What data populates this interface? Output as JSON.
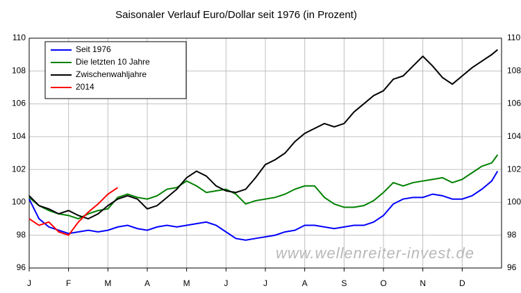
{
  "chart_data": {
    "type": "line",
    "title": "Saisonaler Verlauf Euro/Dollar seit 1976 (in Prozent)",
    "annotation": "www.wellenreiter-invest.de",
    "x": [
      0,
      0.25,
      0.5,
      0.75,
      1,
      1.25,
      1.5,
      1.75,
      2,
      2.25,
      2.5,
      2.75,
      3,
      3.25,
      3.5,
      3.75,
      4,
      4.25,
      4.5,
      4.75,
      5,
      5.25,
      5.5,
      5.75,
      6,
      6.25,
      6.5,
      6.75,
      7,
      7.25,
      7.5,
      7.75,
      8,
      8.25,
      8.5,
      8.75,
      9,
      9.25,
      9.5,
      9.75,
      10,
      10.25,
      10.5,
      10.75,
      11,
      11.25,
      11.5,
      11.75,
      11.9
    ],
    "xlim": [
      0,
      12
    ],
    "xticks": [
      {
        "value": 0,
        "label": "J"
      },
      {
        "value": 1,
        "label": "F"
      },
      {
        "value": 2,
        "label": "M"
      },
      {
        "value": 3,
        "label": "A"
      },
      {
        "value": 4,
        "label": "M"
      },
      {
        "value": 5,
        "label": "J"
      },
      {
        "value": 6,
        "label": "J"
      },
      {
        "value": 7,
        "label": "A"
      },
      {
        "value": 8,
        "label": "S"
      },
      {
        "value": 9,
        "label": "O"
      },
      {
        "value": 10,
        "label": "N"
      },
      {
        "value": 11,
        "label": "D"
      }
    ],
    "ylim": [
      96,
      110
    ],
    "yticks": [
      96,
      98,
      100,
      102,
      104,
      106,
      108,
      110
    ],
    "grid": true,
    "legend": "upper left",
    "series": [
      {
        "name": "Seit 1976",
        "color": "#0000ff",
        "values": [
          100.2,
          99.0,
          98.5,
          98.3,
          98.1,
          98.2,
          98.3,
          98.2,
          98.3,
          98.5,
          98.6,
          98.4,
          98.3,
          98.5,
          98.6,
          98.5,
          98.6,
          98.7,
          98.8,
          98.6,
          98.2,
          97.8,
          97.7,
          97.8,
          97.9,
          98.0,
          98.2,
          98.3,
          98.6,
          98.6,
          98.5,
          98.4,
          98.5,
          98.6,
          98.6,
          98.8,
          99.2,
          99.9,
          100.2,
          100.3,
          100.3,
          100.5,
          100.4,
          100.2,
          100.2,
          100.4,
          100.8,
          101.3,
          101.9
        ]
      },
      {
        "name": "Die letzten 10 Jahre",
        "color": "#008000",
        "values": [
          100.3,
          99.8,
          99.5,
          99.3,
          99.2,
          99.0,
          99.3,
          99.5,
          99.6,
          100.3,
          100.5,
          100.3,
          100.2,
          100.4,
          100.8,
          100.9,
          101.3,
          101.0,
          100.6,
          100.7,
          100.8,
          100.5,
          99.9,
          100.1,
          100.2,
          100.3,
          100.5,
          100.8,
          101.0,
          101.0,
          100.3,
          99.9,
          99.7,
          99.7,
          99.8,
          100.1,
          100.6,
          101.2,
          101.0,
          101.2,
          101.3,
          101.4,
          101.5,
          101.2,
          101.4,
          101.8,
          102.2,
          102.4,
          102.9
        ]
      },
      {
        "name": "Zwischenwahljahre",
        "color": "#000000",
        "values": [
          100.4,
          99.8,
          99.6,
          99.3,
          99.5,
          99.2,
          99.0,
          99.3,
          99.8,
          100.2,
          100.4,
          100.2,
          99.6,
          99.8,
          100.3,
          100.8,
          101.5,
          101.9,
          101.6,
          101.0,
          100.7,
          100.6,
          100.8,
          101.5,
          102.3,
          102.6,
          103.0,
          103.7,
          104.2,
          104.5,
          104.8,
          104.6,
          104.8,
          105.5,
          106.0,
          106.5,
          106.8,
          107.5,
          107.7,
          108.3,
          108.9,
          108.3,
          107.6,
          107.2,
          107.7,
          108.2,
          108.6,
          109.0,
          109.3
        ]
      },
      {
        "name": "2014",
        "color": "#ff0000",
        "values": [
          99.0,
          98.6,
          98.8,
          98.2,
          98.0,
          98.8,
          99.4,
          99.9,
          100.5,
          100.9,
          null,
          null,
          null,
          null,
          null,
          null,
          null,
          null,
          null,
          null,
          null,
          null,
          null,
          null,
          null,
          null,
          null,
          null,
          null,
          null,
          null,
          null,
          null,
          null,
          null,
          null,
          null,
          null,
          null,
          null,
          null,
          null,
          null,
          null,
          null,
          null,
          null,
          null,
          null
        ]
      }
    ]
  }
}
